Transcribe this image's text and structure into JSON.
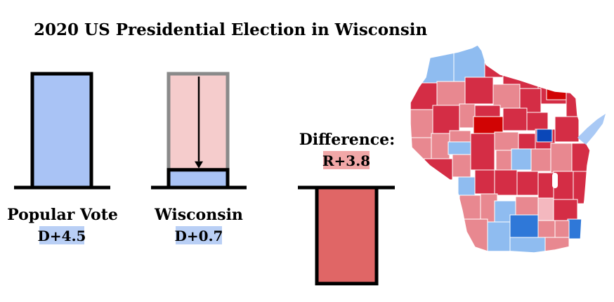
{
  "chart_data": {
    "type": "bar",
    "title": "2020 US Presidential Election in Wisconsin",
    "categories": [
      "Popular Vote",
      "Wisconsin",
      "Difference:"
    ],
    "values": [
      4.5,
      0.7,
      -3.8
    ],
    "value_labels": [
      "D+4.5",
      "D+0.7",
      "R+3.8"
    ],
    "colors": {
      "dem_fill": "#a9c3f5",
      "dem_highlight": "#b9cff5",
      "rep_fill": "#e06666",
      "rep_highlight": "#f1a7a7",
      "ghost_fill": "#f5cccc",
      "ghost_stroke": "#8a8a8a",
      "outline": "#000000"
    },
    "map": {
      "legend": "none",
      "colors": {
        "safe_d": "#8fbcf0",
        "lean_d": "#a9c9f5",
        "likely_d": "#2f78d8",
        "strong_d": "#0a47b8",
        "safe_r": "#d42d45",
        "lean_r": "#e88890",
        "strong_r": "#d10404",
        "tilt_r": "#f4b8bf"
      }
    }
  }
}
